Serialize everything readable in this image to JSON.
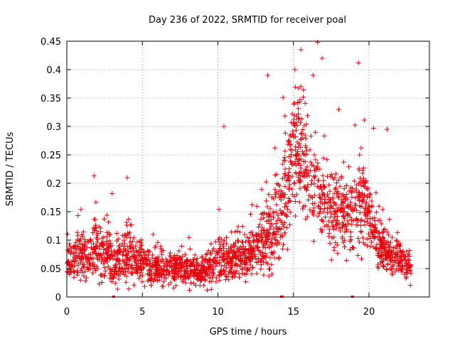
{
  "chart_data": {
    "type": "scatter",
    "title": "Day 236 of 2022, SRMTID for receiver poal",
    "xlabel": "GPS time / hours",
    "ylabel": "SRMTID / TECUs",
    "xlim": [
      0,
      24
    ],
    "ylim": [
      0,
      0.45
    ],
    "xticks": [
      0,
      5,
      10,
      15,
      20
    ],
    "xtick_labels": [
      "0",
      "5",
      "10",
      "15",
      "20"
    ],
    "yticks": [
      0,
      0.05,
      0.1,
      0.15,
      0.2,
      0.25,
      0.3,
      0.35,
      0.4,
      0.45
    ],
    "ytick_labels": [
      "0",
      "0.05",
      "0.1",
      "0.15",
      "0.2",
      "0.25",
      "0.3",
      "0.35",
      "0.4",
      "0.45"
    ],
    "grid": true,
    "marker": "+",
    "color": "#e8000b",
    "series": [
      {
        "name": "poal",
        "profile": {
          "hours": [
            0.0,
            0.5,
            1.0,
            1.5,
            2.0,
            2.5,
            3.0,
            3.5,
            4.0,
            4.5,
            5.0,
            5.5,
            6.0,
            6.5,
            7.0,
            7.5,
            8.0,
            8.5,
            9.0,
            9.5,
            10.0,
            10.5,
            11.0,
            11.5,
            12.0,
            12.5,
            13.0,
            13.5,
            14.0,
            14.5,
            15.0,
            15.5,
            16.0,
            16.5,
            17.0,
            17.5,
            18.0,
            18.5,
            19.0,
            19.5,
            20.0,
            20.5,
            21.0,
            21.5,
            22.0,
            22.5,
            22.8
          ],
          "median": [
            0.055,
            0.07,
            0.07,
            0.065,
            0.09,
            0.075,
            0.06,
            0.06,
            0.08,
            0.07,
            0.06,
            0.05,
            0.05,
            0.05,
            0.045,
            0.05,
            0.05,
            0.05,
            0.045,
            0.05,
            0.065,
            0.07,
            0.065,
            0.07,
            0.08,
            0.085,
            0.095,
            0.11,
            0.13,
            0.17,
            0.26,
            0.25,
            0.22,
            0.2,
            0.16,
            0.15,
            0.15,
            0.16,
            0.16,
            0.18,
            0.15,
            0.1,
            0.08,
            0.07,
            0.07,
            0.06,
            0.05
          ],
          "spread": [
            0.025,
            0.025,
            0.03,
            0.035,
            0.045,
            0.03,
            0.03,
            0.03,
            0.035,
            0.03,
            0.025,
            0.02,
            0.02,
            0.02,
            0.02,
            0.02,
            0.02,
            0.02,
            0.02,
            0.02,
            0.025,
            0.03,
            0.025,
            0.025,
            0.03,
            0.03,
            0.04,
            0.05,
            0.06,
            0.07,
            0.07,
            0.08,
            0.08,
            0.07,
            0.05,
            0.05,
            0.04,
            0.05,
            0.05,
            0.06,
            0.04,
            0.03,
            0.025,
            0.02,
            0.025,
            0.02,
            0.015
          ]
        },
        "points_per_hour": 95,
        "notable_points": [
          {
            "x": 1.8,
            "y": 0.213
          },
          {
            "x": 3.0,
            "y": 0.182
          },
          {
            "x": 4.0,
            "y": 0.21
          },
          {
            "x": 10.4,
            "y": 0.3
          },
          {
            "x": 13.3,
            "y": 0.39
          },
          {
            "x": 15.1,
            "y": 0.4
          },
          {
            "x": 15.5,
            "y": 0.435
          },
          {
            "x": 16.3,
            "y": 0.39
          },
          {
            "x": 16.6,
            "y": 0.448
          },
          {
            "x": 16.9,
            "y": 0.42
          },
          {
            "x": 18.0,
            "y": 0.33
          },
          {
            "x": 19.3,
            "y": 0.412
          },
          {
            "x": 20.3,
            "y": 0.297
          },
          {
            "x": 21.2,
            "y": 0.295
          }
        ],
        "zero_points": [
          3.1,
          14.2,
          14.25,
          18.9
        ]
      }
    ]
  }
}
